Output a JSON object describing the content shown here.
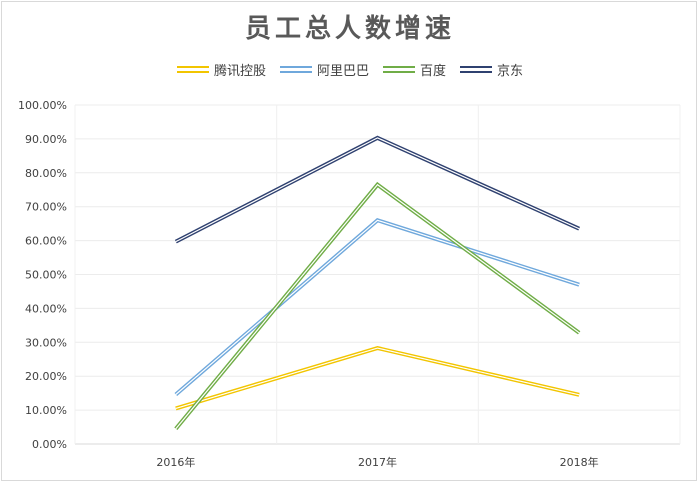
{
  "chart_data": {
    "type": "line",
    "title": "员工总人数增速",
    "xlabel": "",
    "ylabel": "",
    "categories": [
      "2016年",
      "2017年",
      "2018年"
    ],
    "ylim": [
      0,
      1
    ],
    "yticks": [
      "0.00%",
      "10.00%",
      "20.00%",
      "30.00%",
      "40.00%",
      "50.00%",
      "60.00%",
      "70.00%",
      "80.00%",
      "90.00%",
      "100.00%"
    ],
    "grid": true,
    "legend": "top-center",
    "series": [
      {
        "name": "腾讯控股",
        "values": [
          0.105,
          0.283,
          0.145
        ],
        "color": "#f2c500"
      },
      {
        "name": "阿里巴巴",
        "values": [
          0.146,
          0.66,
          0.47
        ],
        "color": "#6fa8dc"
      },
      {
        "name": "百度",
        "values": [
          0.045,
          0.765,
          0.328
        ],
        "color": "#70ad47"
      },
      {
        "name": "京东",
        "values": [
          0.597,
          0.903,
          0.635
        ],
        "color": "#2f4170"
      }
    ]
  }
}
